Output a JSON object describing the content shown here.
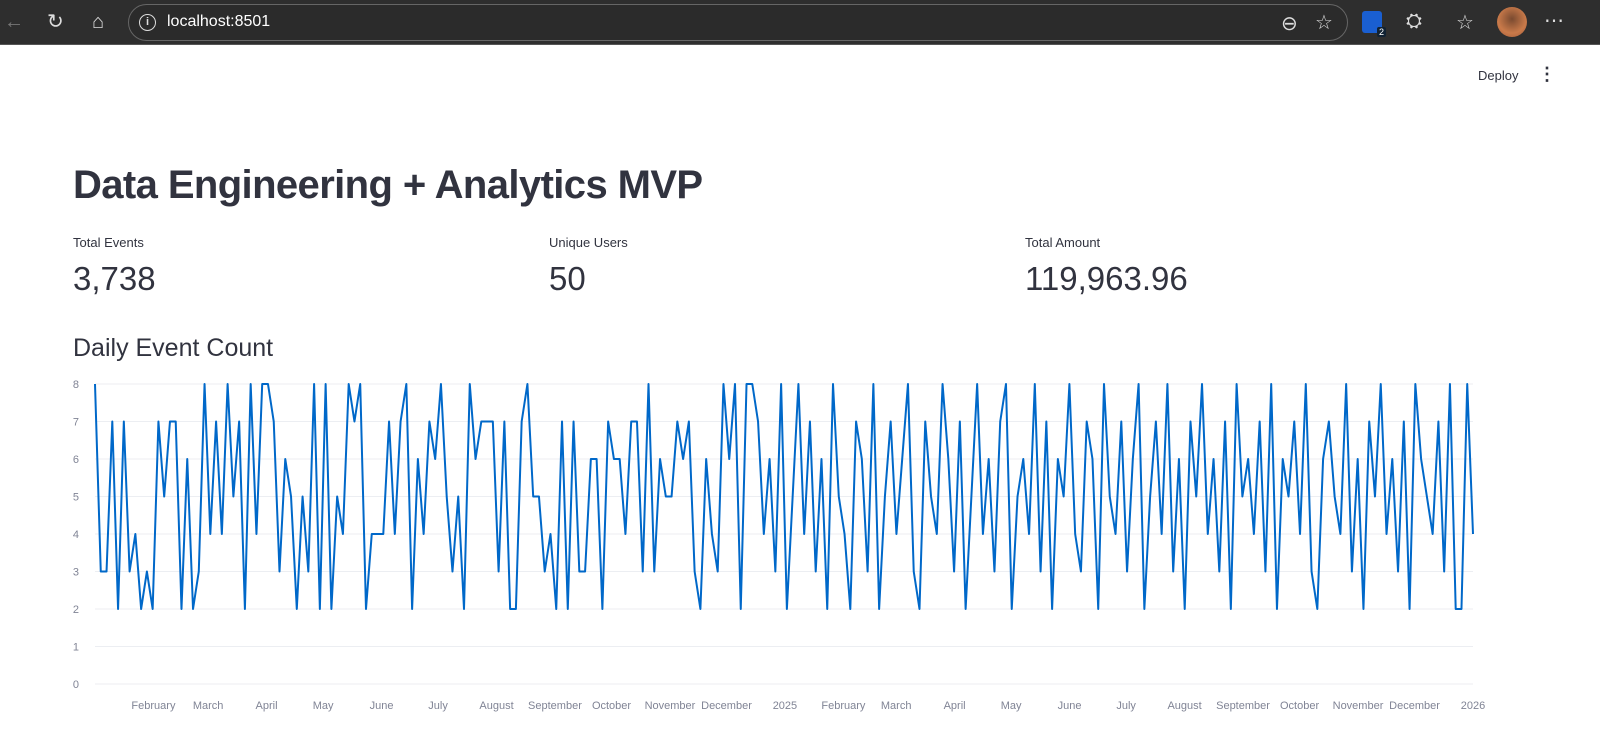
{
  "browser": {
    "url": "localhost:8501",
    "extension_badge": "2"
  },
  "header": {
    "deploy_label": "Deploy"
  },
  "title": "Data Engineering + Analytics MVP",
  "metrics": [
    {
      "label": "Total Events",
      "value": "3,738"
    },
    {
      "label": "Unique Users",
      "value": "50"
    },
    {
      "label": "Total Amount",
      "value": "119,963.96"
    }
  ],
  "chart_title": "Daily Event Count",
  "chart_data": {
    "type": "line",
    "title": "Daily Event Count",
    "x_start": "2024-01-01",
    "x_end": "2026-01-01",
    "ylim": [
      0,
      8
    ],
    "y_ticks": [
      "0",
      "1",
      "2",
      "3",
      "4",
      "5",
      "6",
      "7",
      "8"
    ],
    "x_ticks": [
      {
        "date": "2024-02-01",
        "label": "February"
      },
      {
        "date": "2024-03-01",
        "label": "March"
      },
      {
        "date": "2024-04-01",
        "label": "April"
      },
      {
        "date": "2024-05-01",
        "label": "May"
      },
      {
        "date": "2024-06-01",
        "label": "June"
      },
      {
        "date": "2024-07-01",
        "label": "July"
      },
      {
        "date": "2024-08-01",
        "label": "August"
      },
      {
        "date": "2024-09-01",
        "label": "September"
      },
      {
        "date": "2024-10-01",
        "label": "October"
      },
      {
        "date": "2024-11-01",
        "label": "November"
      },
      {
        "date": "2024-12-01",
        "label": "December"
      },
      {
        "date": "2025-01-01",
        "label": "2025"
      },
      {
        "date": "2025-02-01",
        "label": "February"
      },
      {
        "date": "2025-03-01",
        "label": "March"
      },
      {
        "date": "2025-04-01",
        "label": "April"
      },
      {
        "date": "2025-05-01",
        "label": "May"
      },
      {
        "date": "2025-06-01",
        "label": "June"
      },
      {
        "date": "2025-07-01",
        "label": "July"
      },
      {
        "date": "2025-08-01",
        "label": "August"
      },
      {
        "date": "2025-09-01",
        "label": "September"
      },
      {
        "date": "2025-10-01",
        "label": "October"
      },
      {
        "date": "2025-11-01",
        "label": "November"
      },
      {
        "date": "2025-12-01",
        "label": "December"
      },
      {
        "date": "2026-01-01",
        "label": "2026"
      }
    ],
    "grid": true,
    "color": "#0068c9",
    "values": [
      8,
      3,
      3,
      7,
      2,
      7,
      3,
      4,
      2,
      3,
      2,
      7,
      5,
      7,
      7,
      2,
      6,
      2,
      3,
      8,
      4,
      7,
      4,
      8,
      5,
      7,
      2,
      8,
      4,
      8,
      8,
      7,
      3,
      6,
      5,
      2,
      5,
      3,
      8,
      2,
      8,
      2,
      5,
      4,
      8,
      7,
      8,
      2,
      4,
      4,
      4,
      7,
      4,
      7,
      8,
      2,
      6,
      4,
      7,
      6,
      8,
      5,
      3,
      5,
      2,
      8,
      6,
      7,
      7,
      7,
      3,
      7,
      2,
      2,
      7,
      8,
      5,
      5,
      3,
      4,
      2,
      7,
      2,
      7,
      3,
      3,
      6,
      6,
      2,
      7,
      6,
      6,
      4,
      7,
      7,
      3,
      8,
      3,
      6,
      5,
      5,
      7,
      6,
      7,
      3,
      2,
      6,
      4,
      3,
      8,
      6,
      8,
      2,
      8,
      8,
      7,
      4,
      6,
      3,
      8,
      2,
      5,
      8,
      4,
      7,
      3,
      6,
      2,
      8,
      5,
      4,
      2,
      7,
      6,
      3,
      8,
      2,
      5,
      7,
      4,
      6,
      8,
      3,
      2,
      7,
      5,
      4,
      8,
      6,
      3,
      7,
      2,
      5,
      8,
      4,
      6,
      3,
      7,
      8,
      2,
      5,
      6,
      4,
      8,
      3,
      7,
      2,
      6,
      5,
      8,
      4,
      3,
      7,
      6,
      2,
      8,
      5,
      4,
      7,
      3,
      6,
      8,
      2,
      5,
      7,
      4,
      8,
      3,
      6,
      2,
      7,
      5,
      8,
      4,
      6,
      3,
      7,
      2,
      8,
      5,
      6,
      4,
      7,
      3,
      8,
      2,
      6,
      5,
      7,
      4,
      8,
      3,
      2,
      6,
      7,
      5,
      4,
      8,
      3,
      6,
      2,
      7,
      5,
      8,
      4,
      6,
      3,
      7,
      2,
      8,
      6,
      5,
      4,
      7,
      3,
      8,
      2,
      2,
      8,
      4
    ]
  }
}
